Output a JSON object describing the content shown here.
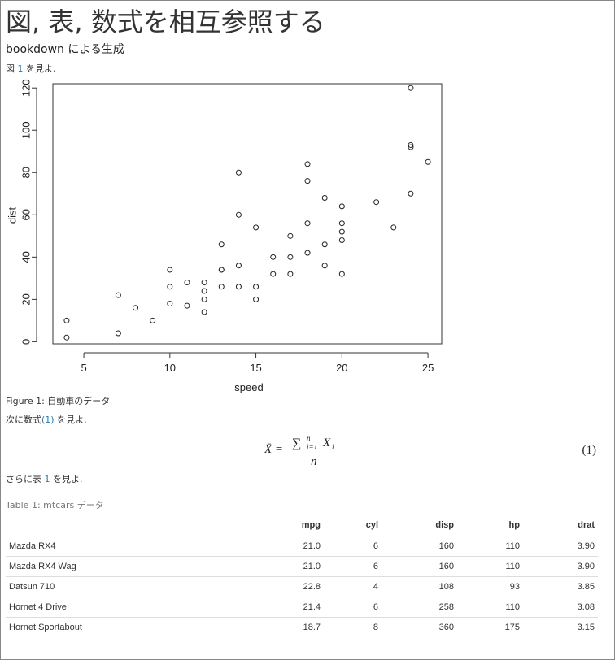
{
  "title": "図, 表, 数式を相互参照する",
  "subtitle": "bookdown による生成",
  "para1": {
    "prefix": "図 ",
    "ref": "1",
    "suffix": " を見よ."
  },
  "figure": {
    "caption": "Figure 1: 自動車のデータ"
  },
  "para2": {
    "prefix": "次に数式",
    "ref": "(1)",
    "suffix": " を見よ."
  },
  "equation": {
    "lhs": "X̄ =",
    "sum": "∑",
    "sum_upper": "n",
    "sum_lower": "i=1",
    "summand": "X",
    "summand_sub": "i",
    "denominator": "n",
    "number": "(1)"
  },
  "para3": {
    "prefix": "さらに表 ",
    "ref": "1",
    "suffix": " を見よ."
  },
  "table": {
    "caption": "Table 1: mtcars データ",
    "columns": [
      "",
      "mpg",
      "cyl",
      "disp",
      "hp",
      "drat"
    ],
    "rows": [
      [
        "Mazda RX4",
        "21.0",
        "6",
        "160",
        "110",
        "3.90"
      ],
      [
        "Mazda RX4 Wag",
        "21.0",
        "6",
        "160",
        "110",
        "3.90"
      ],
      [
        "Datsun 710",
        "22.8",
        "4",
        "108",
        "93",
        "3.85"
      ],
      [
        "Hornet 4 Drive",
        "21.4",
        "6",
        "258",
        "110",
        "3.08"
      ],
      [
        "Hornet Sportabout",
        "18.7",
        "8",
        "360",
        "175",
        "3.15"
      ]
    ]
  },
  "chart_data": {
    "type": "scatter",
    "xlabel": "speed",
    "ylabel": "dist",
    "xlim": [
      3.2,
      25.8
    ],
    "ylim": [
      -1,
      122
    ],
    "xticks": [
      5,
      10,
      15,
      20,
      25
    ],
    "yticks": [
      0,
      20,
      40,
      60,
      80,
      100,
      120
    ],
    "grid": false,
    "points": [
      [
        4,
        2
      ],
      [
        4,
        10
      ],
      [
        7,
        4
      ],
      [
        7,
        22
      ],
      [
        8,
        16
      ],
      [
        9,
        10
      ],
      [
        10,
        18
      ],
      [
        10,
        26
      ],
      [
        10,
        34
      ],
      [
        11,
        17
      ],
      [
        11,
        28
      ],
      [
        12,
        14
      ],
      [
        12,
        20
      ],
      [
        12,
        24
      ],
      [
        12,
        28
      ],
      [
        13,
        26
      ],
      [
        13,
        34
      ],
      [
        13,
        34
      ],
      [
        13,
        46
      ],
      [
        14,
        26
      ],
      [
        14,
        36
      ],
      [
        14,
        60
      ],
      [
        14,
        80
      ],
      [
        15,
        20
      ],
      [
        15,
        26
      ],
      [
        15,
        54
      ],
      [
        16,
        32
      ],
      [
        16,
        40
      ],
      [
        17,
        32
      ],
      [
        17,
        40
      ],
      [
        17,
        50
      ],
      [
        18,
        42
      ],
      [
        18,
        56
      ],
      [
        18,
        76
      ],
      [
        18,
        84
      ],
      [
        19,
        36
      ],
      [
        19,
        46
      ],
      [
        19,
        68
      ],
      [
        20,
        32
      ],
      [
        20,
        48
      ],
      [
        20,
        52
      ],
      [
        20,
        56
      ],
      [
        20,
        64
      ],
      [
        22,
        66
      ],
      [
        23,
        54
      ],
      [
        24,
        70
      ],
      [
        24,
        92
      ],
      [
        24,
        93
      ],
      [
        24,
        120
      ],
      [
        25,
        85
      ]
    ]
  }
}
